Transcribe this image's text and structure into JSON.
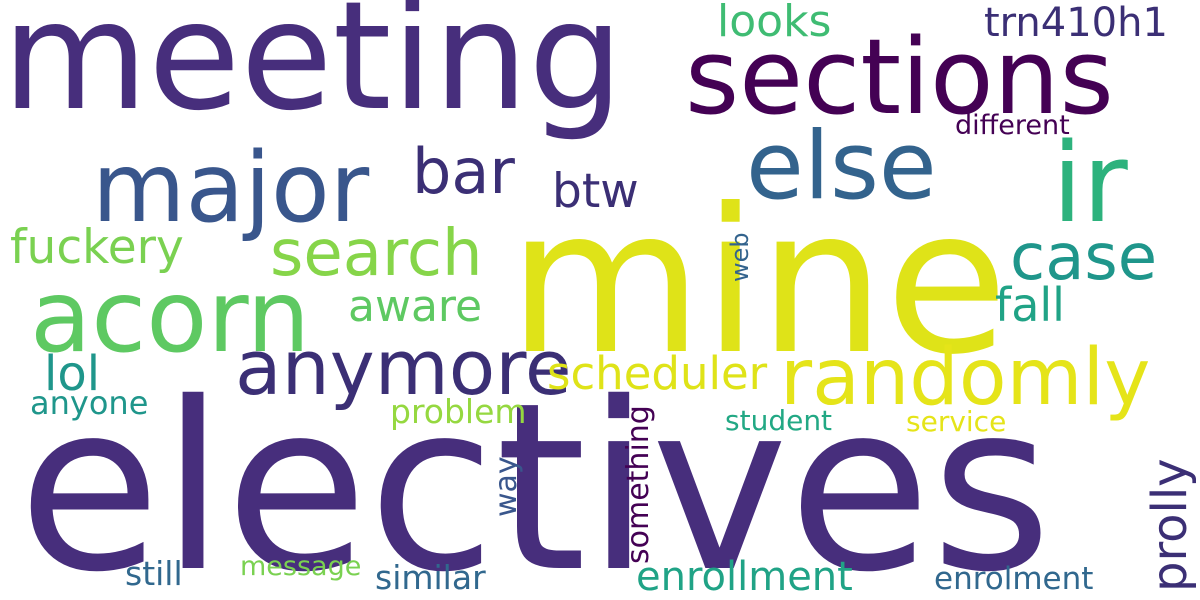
{
  "words": [
    {
      "text": "electives",
      "color": "#472e7c"
    },
    {
      "text": "mine",
      "color": "#dfe318"
    },
    {
      "text": "meeting",
      "color": "#472e7c"
    },
    {
      "text": "sections",
      "color": "#440154"
    },
    {
      "text": "major",
      "color": "#39568c"
    },
    {
      "text": "else",
      "color": "#33638d"
    },
    {
      "text": "ir",
      "color": "#2db27d"
    },
    {
      "text": "acorn",
      "color": "#5ec962"
    },
    {
      "text": "anymore",
      "color": "#3b2f75"
    },
    {
      "text": "randomly",
      "color": "#e5e419"
    },
    {
      "text": "search",
      "color": "#86d549"
    },
    {
      "text": "case",
      "color": "#1f968b"
    },
    {
      "text": "bar",
      "color": "#3b2f75"
    },
    {
      "text": "fuckery",
      "color": "#7ad151"
    },
    {
      "text": "btw",
      "color": "#3b2f75"
    },
    {
      "text": "aware",
      "color": "#5ec962"
    },
    {
      "text": "fall",
      "color": "#20a386"
    },
    {
      "text": "scheduler",
      "color": "#dfe318"
    },
    {
      "text": "lol",
      "color": "#1f968b"
    },
    {
      "text": "anyone",
      "color": "#1f968b"
    },
    {
      "text": "problem",
      "color": "#95d840"
    },
    {
      "text": "looks",
      "color": "#3fbc73"
    },
    {
      "text": "trn410h1",
      "color": "#3b2f75"
    },
    {
      "text": "different",
      "color": "#440154"
    },
    {
      "text": "web",
      "color": "#33638d"
    },
    {
      "text": "student",
      "color": "#22a884"
    },
    {
      "text": "service",
      "color": "#e5e419"
    },
    {
      "text": "prolly",
      "color": "#3b2f75"
    },
    {
      "text": "way",
      "color": "#39568c"
    },
    {
      "text": "something",
      "color": "#440154"
    },
    {
      "text": "still",
      "color": "#31688e"
    },
    {
      "text": "message",
      "color": "#7ad151"
    },
    {
      "text": "similar",
      "color": "#31688e"
    },
    {
      "text": "enrollment",
      "color": "#20a386"
    },
    {
      "text": "enrolment",
      "color": "#31688e"
    }
  ]
}
